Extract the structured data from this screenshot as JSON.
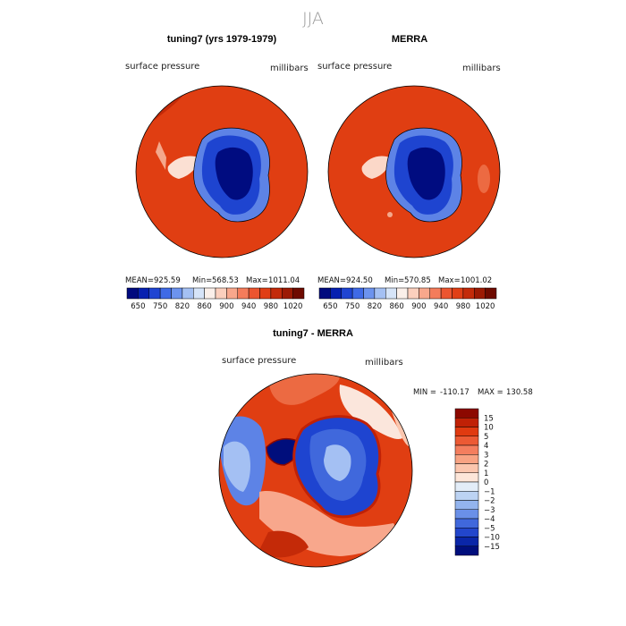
{
  "figure": {
    "season_title": "JJA"
  },
  "chart_data": [
    {
      "type": "heatmap",
      "title": "tuning7 (yrs 1979-1979)",
      "variable_label": "surface pressure",
      "units_label": "millibars",
      "stats": {
        "mean_label": "MEAN=",
        "mean": "925.59",
        "min_label": "Min=",
        "min": "568.53",
        "max_label": "Max=",
        "max": "1011.04"
      },
      "colorbar_labels": [
        "650",
        "750",
        "820",
        "860",
        "900",
        "940",
        "980",
        "1020"
      ],
      "colorbar_colors": [
        "#000a7e",
        "#0620b0",
        "#1f44d2",
        "#3f6ae6",
        "#6c93ee",
        "#a4c0f3",
        "#d6e4f8",
        "#faefe9",
        "#fbcfbd",
        "#f8a78c",
        "#f47c5b",
        "#ec5530",
        "#e03f16",
        "#c32b0a",
        "#9c1a04",
        "#6e0a00"
      ]
    },
    {
      "type": "heatmap",
      "title": "MERRA",
      "variable_label": "surface pressure",
      "units_label": "millibars",
      "stats": {
        "mean_label": "MEAN=",
        "mean": "924.50",
        "min_label": "Min=",
        "min": "570.85",
        "max_label": "Max=",
        "max": "1001.02"
      },
      "colorbar_labels": [
        "650",
        "750",
        "820",
        "860",
        "900",
        "940",
        "980",
        "1020"
      ],
      "colorbar_colors": [
        "#000a7e",
        "#0620b0",
        "#1f44d2",
        "#3f6ae6",
        "#6c93ee",
        "#a4c0f3",
        "#d6e4f8",
        "#faefe9",
        "#fbcfbd",
        "#f8a78c",
        "#f47c5b",
        "#ec5530",
        "#e03f16",
        "#c32b0a",
        "#9c1a04",
        "#6e0a00"
      ]
    },
    {
      "type": "heatmap",
      "title": "tuning7 - MERRA",
      "variable_label": "surface pressure",
      "units_label": "millibars",
      "stats": {
        "min_label": "MIN =",
        "min": "-110.17",
        "max_label": "MAX =",
        "max": "130.58"
      },
      "colorbar_labels": [
        "15",
        "10",
        "5",
        "4",
        "3",
        "2",
        "1",
        "0",
        "−1",
        "−2",
        "−3",
        "−4",
        "−5",
        "−10",
        "−15"
      ],
      "colorbar_colors": [
        "#8c0800",
        "#c02106",
        "#e03a10",
        "#ec5a34",
        "#f47e5e",
        "#f8a383",
        "#fbc6ae",
        "#fde6d9",
        "#e3edf8",
        "#bcd3f3",
        "#93b4ee",
        "#6a90e8",
        "#4068dc",
        "#2246cc",
        "#0a26a8",
        "#000e7c"
      ]
    }
  ]
}
